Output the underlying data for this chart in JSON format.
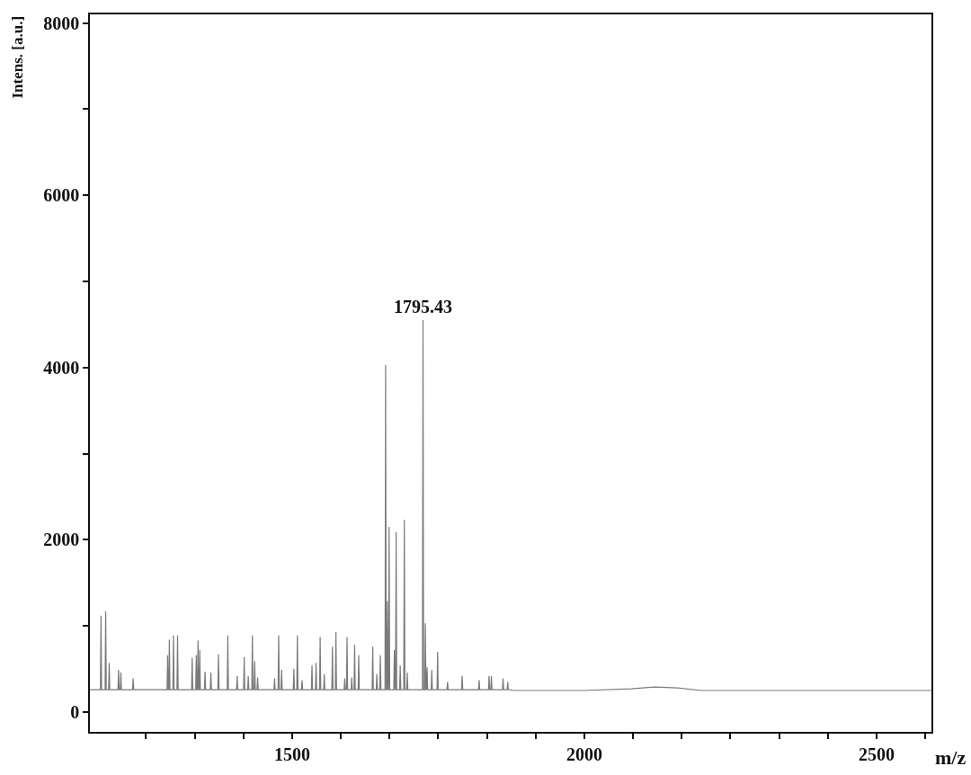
{
  "chart_data": {
    "type": "line",
    "xlabel": "m/z",
    "ylabel": "Intens. [a.u.]",
    "annotations": [
      {
        "text": "1795.43",
        "x": 1724,
        "y": 4550
      }
    ],
    "series": [
      {
        "color": "#7a7a7a",
        "x": [
          1154,
          1172,
          1173,
          1174,
          1180,
          1181,
          1182,
          1186,
          1187,
          1188,
          1202,
          1203,
          1204,
          1206,
          1207,
          1208,
          1227,
          1228,
          1229,
          1286,
          1287,
          1288,
          1289,
          1290,
          1291,
          1296,
          1297,
          1298,
          1303,
          1304,
          1305,
          1328,
          1329,
          1330,
          1335,
          1336,
          1337,
          1338,
          1339,
          1340,
          1341,
          1342,
          1343,
          1350,
          1351,
          1352,
          1360,
          1361,
          1362,
          1373,
          1374,
          1375,
          1389,
          1390,
          1391,
          1405,
          1406,
          1407,
          1417,
          1418,
          1419,
          1424,
          1425,
          1426,
          1431,
          1432,
          1433,
          1435,
          1436,
          1437,
          1440,
          1441,
          1442,
          1469,
          1470,
          1471,
          1476,
          1477,
          1478,
          1481,
          1482,
          1483,
          1502,
          1503,
          1504,
          1508,
          1509,
          1510,
          1516,
          1517,
          1518,
          1533,
          1534,
          1535,
          1540,
          1541,
          1542,
          1547,
          1548,
          1549,
          1554,
          1555,
          1556,
          1568,
          1569,
          1570,
          1574,
          1575,
          1576,
          1589,
          1590,
          1591,
          1593,
          1594,
          1595,
          1601,
          1602,
          1603,
          1606,
          1607,
          1608,
          1613,
          1614,
          1615,
          1637,
          1638,
          1639,
          1644,
          1645,
          1646,
          1650,
          1651,
          1652,
          1659,
          1660,
          1661,
          1662,
          1663,
          1664,
          1665,
          1666,
          1667,
          1674,
          1675,
          1676,
          1677,
          1678,
          1679,
          1684,
          1685,
          1686,
          1691,
          1692,
          1693,
          1696,
          1697,
          1698,
          1723,
          1724,
          1725,
          1727,
          1728,
          1729,
          1730,
          1731,
          1732,
          1738,
          1739,
          1740,
          1748,
          1749,
          1750,
          1765,
          1766,
          1767,
          1790,
          1791,
          1792,
          1819,
          1820,
          1821,
          1836,
          1837,
          1838,
          1840,
          1841,
          1842,
          1860,
          1861,
          1862,
          1868,
          1869,
          1870,
          1880,
          1950,
          2000,
          2080,
          2120,
          2160,
          2200,
          2300,
          2400,
          2500,
          2594
        ],
        "values": [
          260,
          260,
          1120,
          260,
          260,
          1170,
          260,
          260,
          570,
          260,
          260,
          490,
          260,
          260,
          460,
          260,
          260,
          390,
          260,
          260,
          660,
          260,
          260,
          840,
          260,
          260,
          890,
          260,
          260,
          890,
          260,
          260,
          630,
          260,
          260,
          660,
          260,
          260,
          830,
          260,
          260,
          720,
          260,
          260,
          470,
          260,
          260,
          460,
          260,
          260,
          670,
          260,
          260,
          890,
          260,
          260,
          420,
          260,
          260,
          640,
          260,
          260,
          420,
          260,
          260,
          890,
          260,
          260,
          590,
          260,
          260,
          400,
          260,
          260,
          390,
          260,
          260,
          890,
          260,
          260,
          490,
          260,
          260,
          500,
          260,
          260,
          890,
          260,
          260,
          370,
          260,
          260,
          540,
          260,
          260,
          570,
          260,
          260,
          870,
          260,
          260,
          440,
          260,
          260,
          760,
          260,
          260,
          930,
          260,
          260,
          390,
          260,
          260,
          870,
          260,
          260,
          400,
          260,
          260,
          780,
          260,
          260,
          660,
          260,
          260,
          760,
          260,
          260,
          440,
          260,
          260,
          660,
          260,
          260,
          4030,
          260,
          260,
          1290,
          260,
          260,
          2150,
          260,
          260,
          720,
          260,
          260,
          2090,
          260,
          260,
          540,
          260,
          260,
          2230,
          260,
          260,
          460,
          260,
          260,
          4550,
          260,
          260,
          1030,
          260,
          260,
          520,
          260,
          260,
          490,
          260,
          260,
          700,
          260,
          260,
          350,
          260,
          260,
          420,
          260,
          260,
          370,
          260,
          260,
          420,
          260,
          260,
          420,
          260,
          260,
          390,
          260,
          260,
          350,
          260,
          250,
          250,
          250,
          270,
          290,
          280,
          250,
          250,
          250,
          250,
          250
        ]
      }
    ],
    "xlim": [
      1154,
      2594
    ],
    "xticks": [
      {
        "value": 1250,
        "label": null
      },
      {
        "value": 1333.33,
        "label": null
      },
      {
        "value": 1416.67,
        "label": null
      },
      1500,
      {
        "value": 1583.33,
        "label": null
      },
      {
        "value": 1666.67,
        "label": null
      },
      {
        "value": 1750,
        "label": null
      },
      {
        "value": 1833.33,
        "label": null
      },
      {
        "value": 1916.67,
        "label": null
      },
      2000,
      {
        "value": 2083.33,
        "label": null
      },
      {
        "value": 2166.67,
        "label": null
      },
      {
        "value": 2250,
        "label": null
      },
      {
        "value": 2333.33,
        "label": null
      },
      {
        "value": 2416.67,
        "label": null
      },
      2500,
      {
        "value": 2583.33,
        "label": null
      }
    ],
    "ylim": [
      -230,
      8100
    ],
    "yticks": [
      0,
      {
        "value": 1000,
        "label": null
      },
      2000,
      {
        "value": 3000,
        "label": null
      },
      4000,
      {
        "value": 5000,
        "label": null
      },
      6000,
      {
        "value": 7000,
        "label": null
      },
      8000
    ],
    "grid": false,
    "line_style": "solid"
  }
}
